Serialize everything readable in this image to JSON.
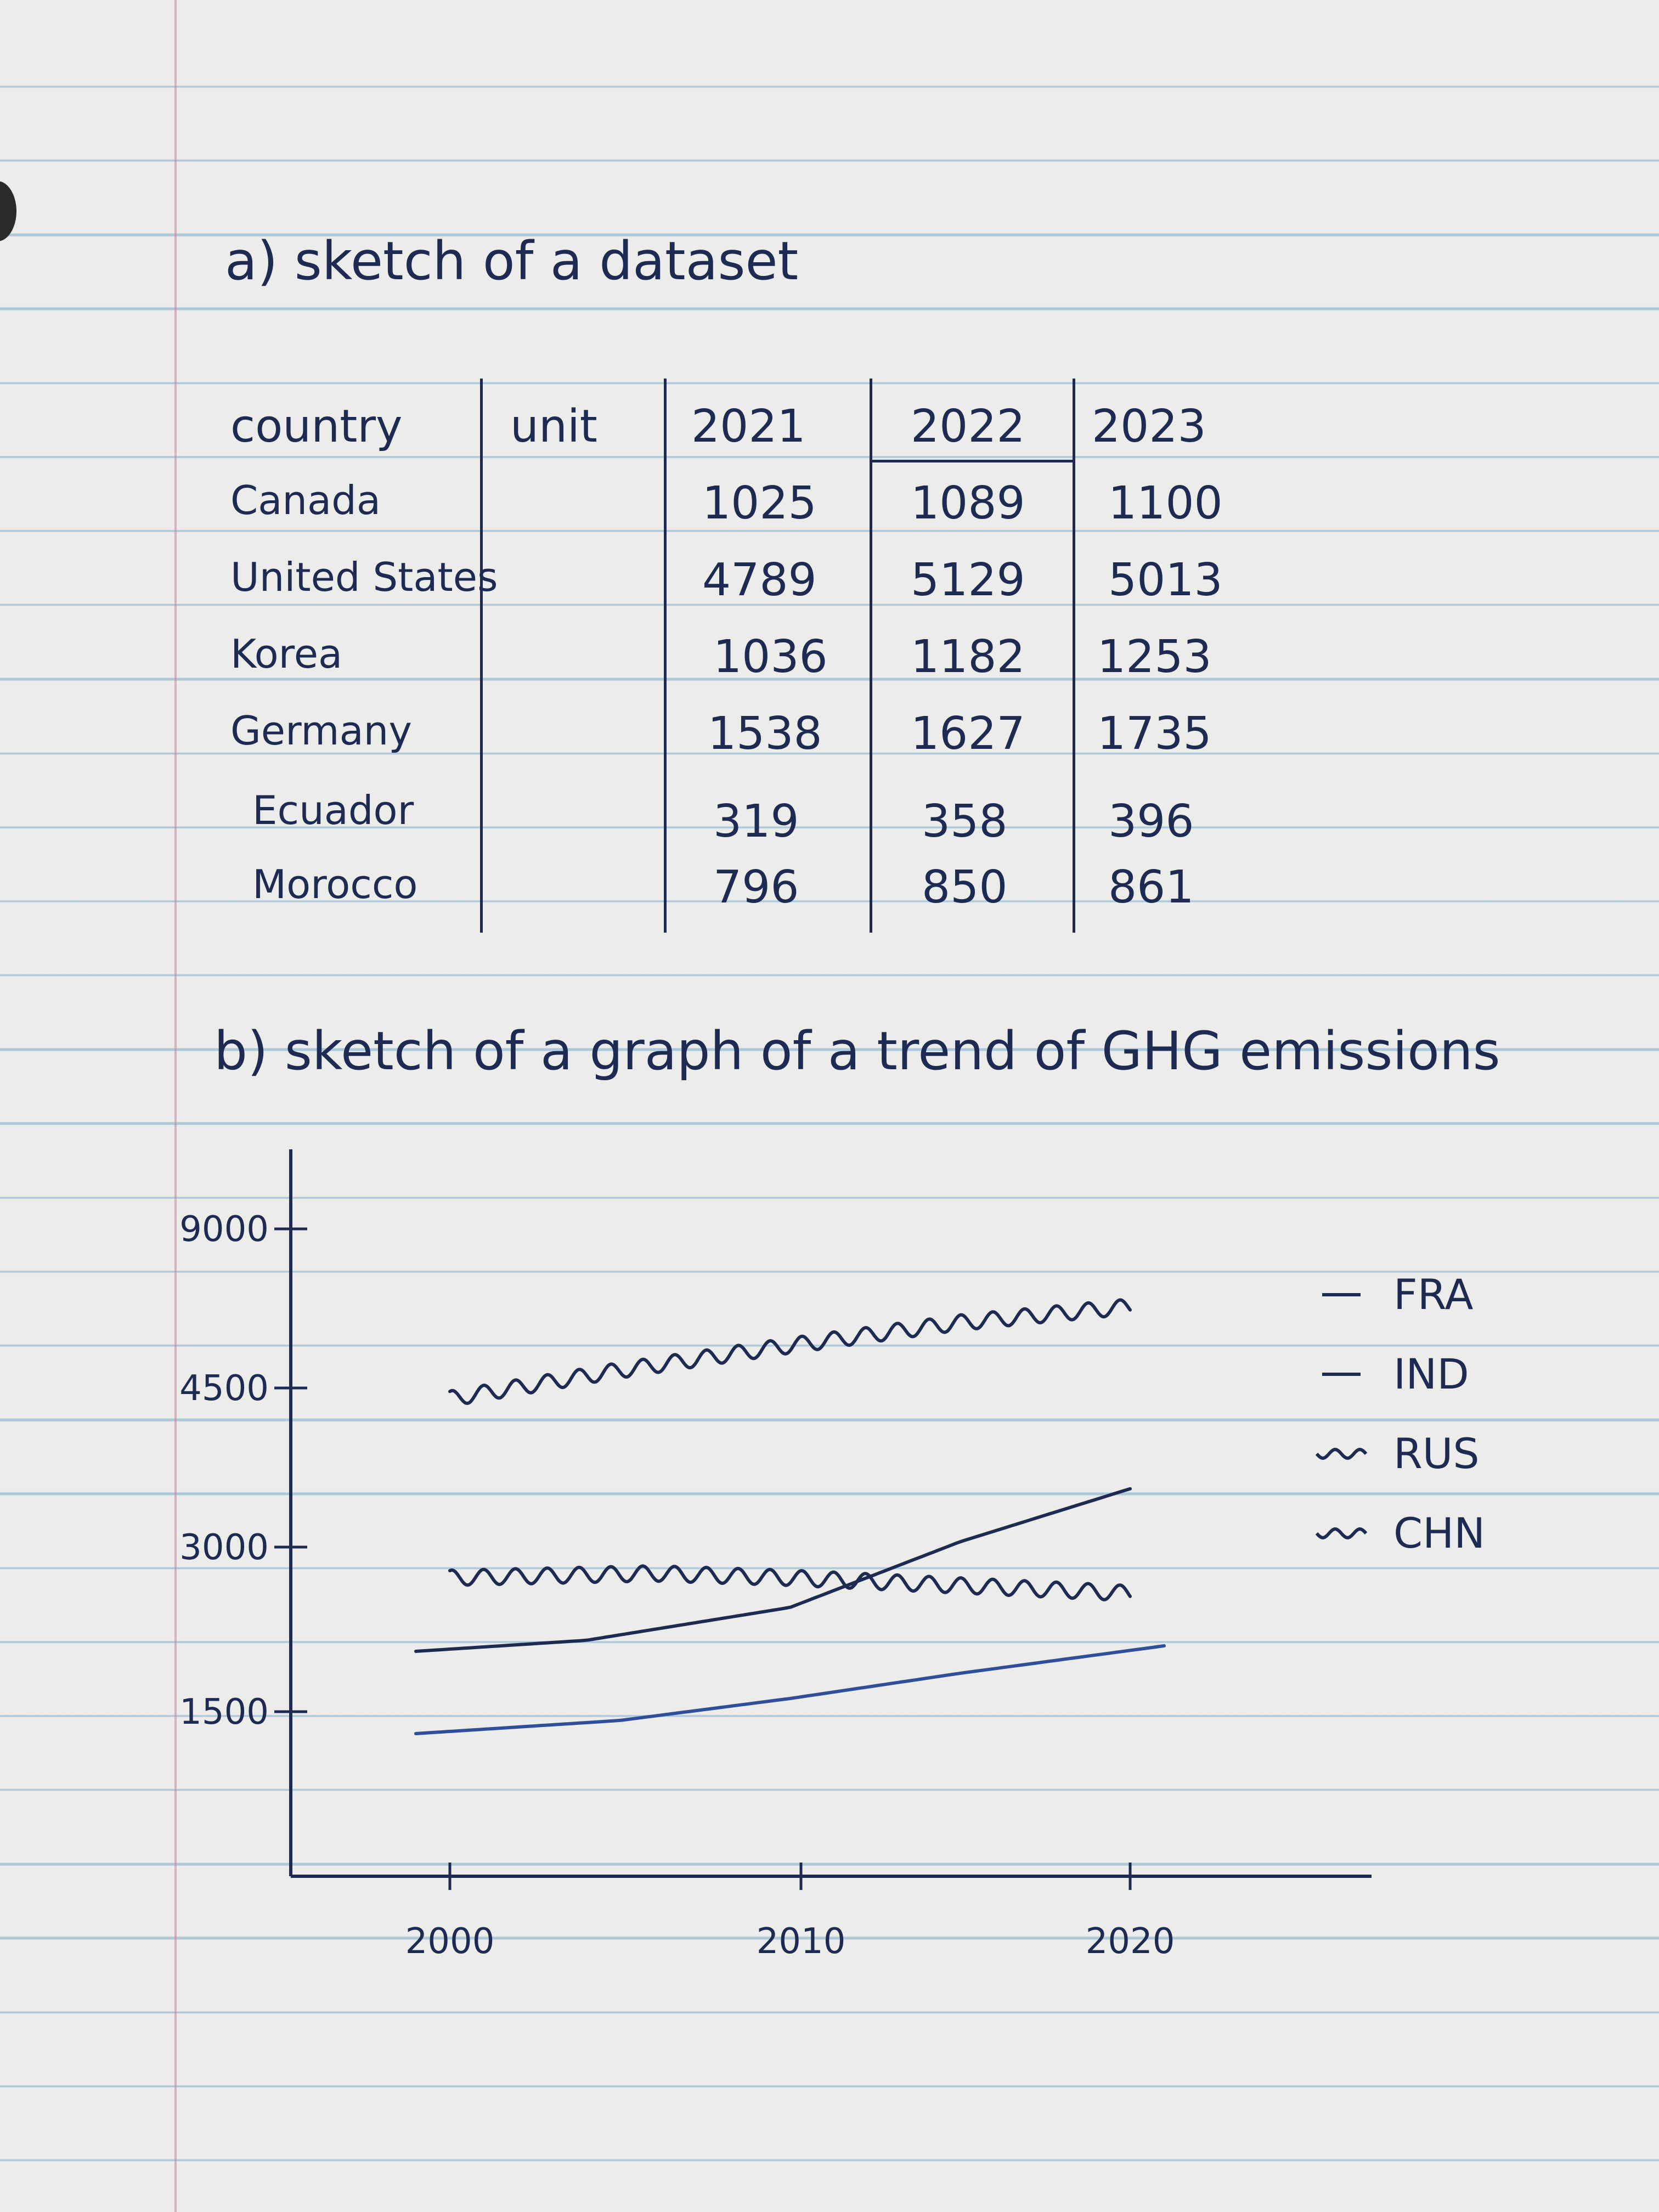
{
  "heading_a": "a) sketch of a dataset",
  "heading_b": "b) sketch of a graph of a trend of GHG emissions",
  "table": {
    "columns": [
      "country",
      "unit",
      "2021",
      "2022",
      "2023"
    ],
    "rows": [
      {
        "country": "Canada",
        "unit": "",
        "v2021": "1025",
        "v2022": "1089",
        "v2023": "1100"
      },
      {
        "country": "United States",
        "unit": "",
        "v2021": "4789",
        "v2022": "5129",
        "v2023": "5013"
      },
      {
        "country": "Korea",
        "unit": "",
        "v2021": "1036",
        "v2022": "1182",
        "v2023": "1253"
      },
      {
        "country": "Germany",
        "unit": "",
        "v2021": "1538",
        "v2022": "1627",
        "v2023": "1735"
      },
      {
        "country": "Ecuador",
        "unit": "",
        "v2021": "319",
        "v2022": "358",
        "v2023": "396"
      },
      {
        "country": "Morocco",
        "unit": "",
        "v2021": "796",
        "v2022": "850",
        "v2023": "861"
      }
    ]
  },
  "chart_data": {
    "type": "line",
    "y_ticks": [
      "9000",
      "4500",
      "3000",
      "1500"
    ],
    "x_ticks": [
      "2000",
      "2010",
      "2020"
    ],
    "series": [
      {
        "name": "FRA",
        "style": "straight",
        "color": "#1d2a52",
        "points": [
          [
            1999,
            2050
          ],
          [
            2004,
            2150
          ],
          [
            2010,
            2450
          ],
          [
            2015,
            3050
          ],
          [
            2020,
            3550
          ]
        ]
      },
      {
        "name": "IND",
        "style": "straight",
        "color": "#2f4f9a",
        "points": [
          [
            1999,
            1300
          ],
          [
            2005,
            1420
          ],
          [
            2010,
            1620
          ],
          [
            2015,
            1850
          ],
          [
            2021,
            2100
          ]
        ]
      },
      {
        "name": "RUS",
        "style": "wavy",
        "color": "#1d2a52",
        "points": [
          [
            2000,
            2720
          ],
          [
            2006,
            2760
          ],
          [
            2010,
            2720
          ],
          [
            2015,
            2650
          ],
          [
            2020,
            2580
          ]
        ]
      },
      {
        "name": "CHN",
        "style": "wavy",
        "color": "#1d2a52",
        "points": [
          [
            2000,
            4400
          ],
          [
            2005,
            5000
          ],
          [
            2010,
            5700
          ],
          [
            2015,
            6350
          ],
          [
            2020,
            6800
          ]
        ]
      }
    ]
  }
}
